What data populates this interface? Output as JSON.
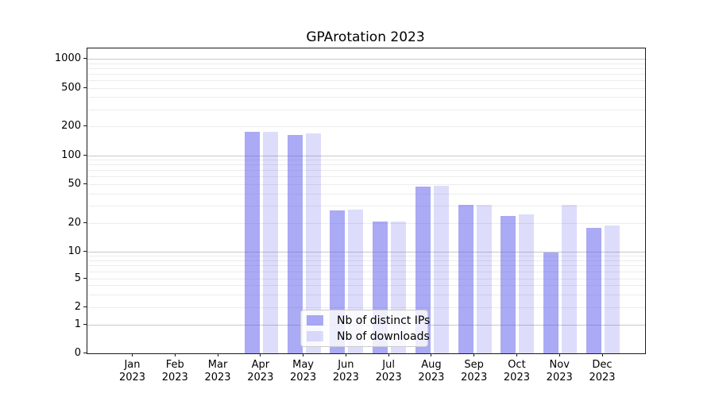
{
  "figure": {
    "background": "#ffffff"
  },
  "chart_data": {
    "type": "bar",
    "title": "GPArotation 2023",
    "categories": [
      "Jan 2023",
      "Feb 2023",
      "Mar 2023",
      "Apr 2023",
      "May 2023",
      "Jun 2023",
      "Jul 2023",
      "Aug 2023",
      "Sep 2023",
      "Oct 2023",
      "Nov 2023",
      "Dec 2023"
    ],
    "series": [
      {
        "name": "Nb of distinct IPs",
        "color": "rgba(85,85,235,0.5)",
        "color_hex_on_white": "#aaaaf5",
        "values": [
          0,
          0,
          0,
          176,
          164,
          27,
          21,
          48,
          31,
          24,
          10,
          18
        ]
      },
      {
        "name": "Nb of downloads",
        "color": "rgba(85,85,235,0.2)",
        "color_hex_on_white": "#dcdcf8",
        "values": [
          0,
          0,
          0,
          177,
          170,
          28,
          21,
          49,
          31,
          25,
          31,
          19
        ]
      }
    ],
    "xlabel": "",
    "ylabel": "",
    "yscale": "symlog",
    "yticks": [
      0,
      1,
      2,
      5,
      10,
      20,
      50,
      100,
      200,
      500,
      1000
    ],
    "ylim": [
      0,
      1200
    ],
    "grid": "major and minor horizontal gridlines",
    "legend": {
      "position": "lower center inside axes",
      "items": [
        "Nb of distinct IPs",
        "Nb of downloads"
      ]
    }
  }
}
